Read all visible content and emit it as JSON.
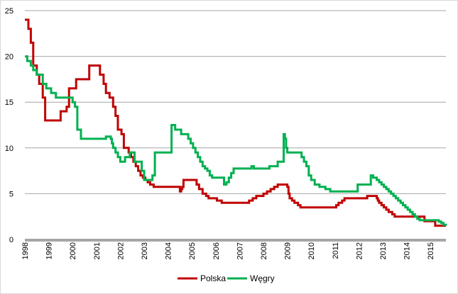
{
  "chart_data": {
    "type": "line",
    "title": "",
    "xlabel": "",
    "ylabel": "",
    "xlim": [
      1998,
      2015.65
    ],
    "ylim": [
      0,
      25
    ],
    "x_ticks": [
      "1998",
      "1999",
      "2000",
      "2001",
      "2002",
      "2003",
      "2004",
      "2005",
      "2006",
      "2007",
      "2008",
      "2009",
      "2010",
      "2011",
      "2012",
      "2013",
      "2014",
      "2015"
    ],
    "y_ticks": [
      "0",
      "5",
      "10",
      "15",
      "20",
      "25"
    ],
    "grid": "horizontal",
    "legend_position": "bottom",
    "series": [
      {
        "name": "Polska",
        "color": "#c00000",
        "step": true,
        "x": [
          1998.0,
          1998.15,
          1998.25,
          1998.35,
          1998.5,
          1998.6,
          1998.75,
          1998.85,
          1999.0,
          1999.05,
          1999.15,
          1999.4,
          1999.5,
          1999.75,
          1999.85,
          2000.0,
          2000.15,
          2000.25,
          2000.7,
          2001.0,
          2001.15,
          2001.3,
          2001.4,
          2001.55,
          2001.7,
          2001.75,
          2001.8,
          2001.9,
          2002.05,
          2002.15,
          2002.25,
          2002.35,
          2002.45,
          2002.55,
          2002.65,
          2002.75,
          2002.85,
          2002.95,
          2003.05,
          2003.15,
          2003.25,
          2003.4,
          2004.5,
          2004.55,
          2004.6,
          2004.65,
          2005.2,
          2005.3,
          2005.45,
          2005.6,
          2005.7,
          2005.85,
          2006.05,
          2006.25,
          2007.25,
          2007.4,
          2007.55,
          2007.7,
          2007.85,
          2008.0,
          2008.15,
          2008.3,
          2008.45,
          2008.6,
          2009.0,
          2009.05,
          2009.1,
          2009.2,
          2009.3,
          2009.45,
          2009.55,
          2011.0,
          2011.05,
          2011.15,
          2011.3,
          2011.4,
          2012.35,
          2012.75,
          2012.8,
          2012.85,
          2012.95,
          2013.05,
          2013.15,
          2013.25,
          2013.4,
          2013.5,
          2014.75,
          2014.8,
          2015.15,
          2015.2,
          2015.65
        ],
        "y": [
          24.0,
          23.0,
          21.5,
          19.0,
          18.0,
          17.0,
          15.5,
          13.0,
          13.0,
          13.0,
          13.0,
          13.0,
          14.0,
          14.5,
          16.5,
          16.5,
          17.5,
          17.5,
          19.0,
          19.0,
          18.0,
          17.0,
          16.0,
          15.5,
          14.5,
          14.5,
          13.5,
          12.0,
          11.5,
          10.0,
          10.0,
          9.5,
          9.0,
          8.5,
          8.0,
          7.5,
          7.0,
          6.75,
          6.5,
          6.25,
          6.0,
          5.75,
          5.25,
          5.5,
          5.75,
          6.5,
          6.0,
          5.5,
          5.0,
          4.75,
          4.5,
          4.5,
          4.25,
          4.0,
          4.0,
          4.25,
          4.5,
          4.75,
          4.75,
          5.0,
          5.25,
          5.5,
          5.75,
          6.0,
          5.75,
          5.0,
          4.5,
          4.25,
          4.0,
          3.75,
          3.5,
          3.5,
          3.75,
          4.0,
          4.25,
          4.5,
          4.75,
          4.5,
          4.25,
          4.0,
          3.75,
          3.5,
          3.25,
          3.0,
          2.75,
          2.5,
          2.0,
          2.0,
          2.0,
          1.5,
          1.5
        ]
      },
      {
        "name": "Węgry",
        "color": "#00b050",
        "step": true,
        "x": [
          1998.0,
          1998.1,
          1998.25,
          1998.35,
          1998.5,
          1998.75,
          1998.9,
          1999.1,
          1999.3,
          1999.6,
          2000.0,
          2000.1,
          2000.2,
          2000.35,
          2001.0,
          2001.4,
          2001.6,
          2001.65,
          2001.7,
          2001.8,
          2001.9,
          2002.0,
          2002.1,
          2002.2,
          2002.4,
          2002.5,
          2002.6,
          2002.9,
          2003.0,
          2003.15,
          2003.35,
          2003.45,
          2003.75,
          2004.15,
          2004.3,
          2004.55,
          2004.75,
          2004.85,
          2004.95,
          2005.05,
          2005.15,
          2005.25,
          2005.35,
          2005.45,
          2005.55,
          2005.65,
          2005.75,
          2005.85,
          2006.35,
          2006.45,
          2006.55,
          2006.65,
          2006.75,
          2007.5,
          2007.55,
          2007.6,
          2008.1,
          2008.25,
          2008.6,
          2008.8,
          2008.85,
          2008.9,
          2008.95,
          2009.0,
          2009.05,
          2009.1,
          2009.55,
          2009.6,
          2009.7,
          2009.8,
          2009.9,
          2010.0,
          2010.15,
          2010.35,
          2010.6,
          2010.8,
          2011.0,
          2011.95,
          2012.5,
          2012.6,
          2012.75,
          2012.85,
          2012.95,
          2013.05,
          2013.15,
          2013.25,
          2013.35,
          2013.45,
          2013.55,
          2013.65,
          2013.75,
          2013.85,
          2013.95,
          2014.05,
          2014.15,
          2014.25,
          2014.35,
          2014.45,
          2014.55,
          2014.65,
          2014.75,
          2015.2,
          2015.35,
          2015.45,
          2015.55,
          2015.65
        ],
        "y": [
          20.0,
          19.5,
          19.0,
          18.5,
          18.0,
          17.0,
          16.5,
          16.0,
          15.5,
          15.5,
          15.0,
          14.5,
          12.0,
          11.0,
          11.0,
          11.25,
          11.0,
          10.5,
          10.0,
          9.5,
          9.0,
          8.5,
          8.5,
          9.0,
          9.5,
          9.5,
          8.5,
          7.5,
          6.5,
          6.5,
          7.0,
          9.5,
          9.5,
          12.5,
          12.0,
          11.5,
          11.5,
          11.0,
          10.5,
          10.0,
          9.5,
          9.0,
          8.5,
          8.0,
          7.75,
          7.5,
          7.0,
          6.75,
          6.0,
          6.25,
          6.75,
          7.25,
          7.75,
          8.0,
          8.0,
          7.75,
          7.75,
          8.0,
          8.5,
          8.5,
          11.5,
          11.0,
          10.0,
          9.5,
          9.5,
          9.5,
          9.5,
          9.0,
          8.5,
          8.0,
          7.0,
          6.5,
          6.0,
          5.75,
          5.5,
          5.25,
          5.25,
          6.0,
          7.0,
          6.75,
          6.5,
          6.25,
          6.0,
          5.75,
          5.5,
          5.25,
          5.0,
          4.75,
          4.5,
          4.25,
          4.0,
          3.75,
          3.5,
          3.25,
          3.0,
          2.75,
          2.5,
          2.25,
          2.1,
          2.1,
          2.1,
          2.1,
          1.95,
          1.8,
          1.6,
          1.5
        ]
      }
    ]
  }
}
